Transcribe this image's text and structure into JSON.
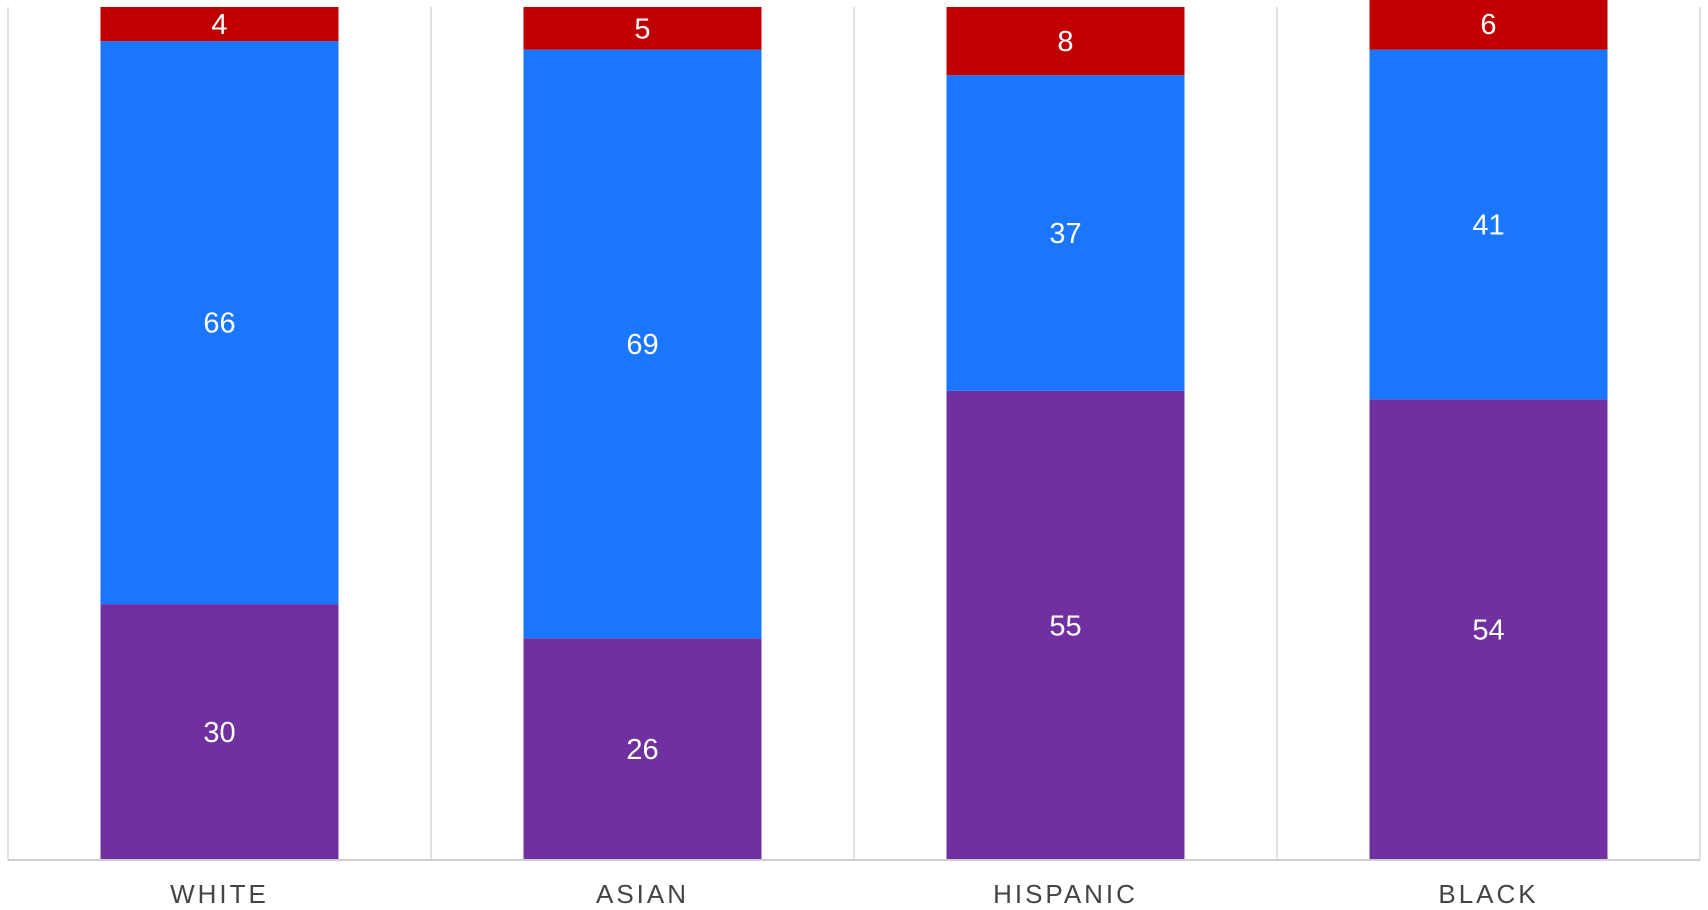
{
  "chart_data": {
    "type": "bar",
    "stacked": true,
    "categories": [
      "WHITE",
      "ASIAN",
      "HISPANIC",
      "BLACK"
    ],
    "series": [
      {
        "values": [
          30,
          26,
          55,
          54
        ],
        "color": "#7030a0"
      },
      {
        "values": [
          66,
          69,
          37,
          41
        ],
        "color": "#1a75ff"
      },
      {
        "values": [
          4,
          5,
          8,
          6
        ],
        "color": "#c00000"
      }
    ],
    "ylim": [
      0,
      100
    ],
    "grid": false,
    "legend": "none"
  }
}
